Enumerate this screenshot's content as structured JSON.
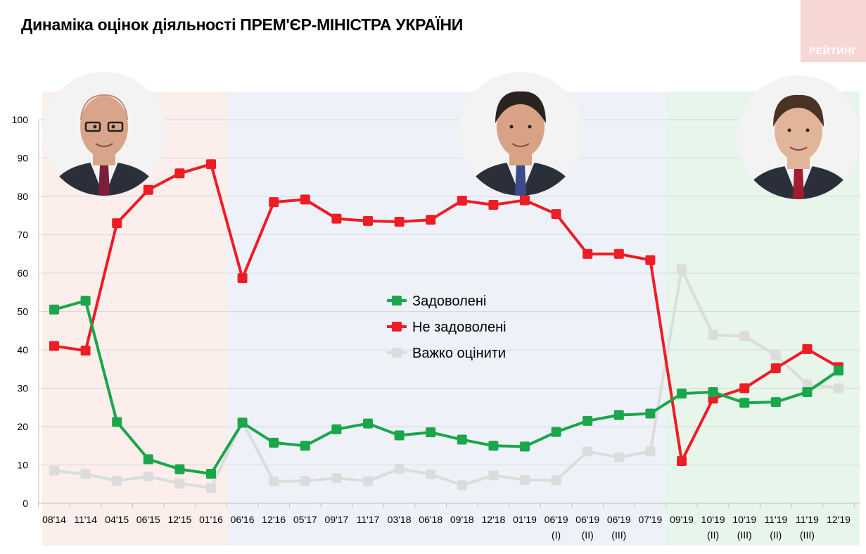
{
  "title": "Динаміка оцінок діяльності ПРЕМ'ЄР-МІНІСТРА УКРАЇНИ",
  "logo_text": "РЕЙТИНГ",
  "colors": {
    "satisfied": "#1aa64a",
    "unsatisfied": "#ee1c24",
    "hard": "#dcdcdc",
    "band1": "#fbeeeb",
    "band2": "#eef2f8",
    "band3": "#e7f5ea"
  },
  "portraits": [
    {
      "name": "yatsenyuk-portrait"
    },
    {
      "name": "groysman-portrait"
    },
    {
      "name": "honcharuk-portrait"
    }
  ],
  "chart_data": {
    "type": "line",
    "title": "Динаміка оцінок діяльності ПРЕМ'ЄР-МІНІСТРА УКРАЇНИ",
    "ylim": [
      0,
      100
    ],
    "yticks": [
      0,
      10,
      20,
      30,
      40,
      50,
      60,
      70,
      80,
      90,
      100
    ],
    "grid": true,
    "legend_position": "center",
    "categories": [
      {
        "label": "08'14",
        "sub": ""
      },
      {
        "label": "11'14",
        "sub": ""
      },
      {
        "label": "04'15",
        "sub": ""
      },
      {
        "label": "06'15",
        "sub": ""
      },
      {
        "label": "12'15",
        "sub": ""
      },
      {
        "label": "01'16",
        "sub": ""
      },
      {
        "label": "06'16",
        "sub": ""
      },
      {
        "label": "12'16",
        "sub": ""
      },
      {
        "label": "05'17",
        "sub": ""
      },
      {
        "label": "09'17",
        "sub": ""
      },
      {
        "label": "11'17",
        "sub": ""
      },
      {
        "label": "03'18",
        "sub": ""
      },
      {
        "label": "06'18",
        "sub": ""
      },
      {
        "label": "09'18",
        "sub": ""
      },
      {
        "label": "12'18",
        "sub": ""
      },
      {
        "label": "01'19",
        "sub": ""
      },
      {
        "label": "06'19",
        "sub": "(I)"
      },
      {
        "label": "06'19",
        "sub": "(II)"
      },
      {
        "label": "06'19",
        "sub": "(III)"
      },
      {
        "label": "07'19",
        "sub": ""
      },
      {
        "label": "09'19",
        "sub": ""
      },
      {
        "label": "10'19",
        "sub": "(II)"
      },
      {
        "label": "10'19",
        "sub": "(III)"
      },
      {
        "label": "11'19",
        "sub": "(II)"
      },
      {
        "label": "11'19",
        "sub": "(III)"
      },
      {
        "label": "12'19",
        "sub": ""
      }
    ],
    "bands": [
      {
        "from": 0,
        "to": 5,
        "color_key": "band1"
      },
      {
        "from": 6,
        "to": 19,
        "color_key": "band2"
      },
      {
        "from": 20,
        "to": 25,
        "color_key": "band3"
      }
    ],
    "series": [
      {
        "name": "Задоволені",
        "color_key": "satisfied",
        "values": [
          50.5,
          52.8,
          21.2,
          11.5,
          8.9,
          7.7,
          21.0,
          15.8,
          15.0,
          19.3,
          20.8,
          17.7,
          18.5,
          16.6,
          15.0,
          14.8,
          18.6,
          21.5,
          23.0,
          23.4,
          28.6,
          29.0,
          26.2,
          26.4,
          29.0,
          34.6
        ]
      },
      {
        "name": "Не задоволені",
        "color_key": "unsatisfied",
        "values": [
          41.0,
          39.8,
          73.0,
          81.7,
          86.0,
          88.4,
          58.7,
          78.5,
          79.2,
          74.2,
          73.6,
          73.4,
          73.9,
          78.9,
          77.8,
          79.0,
          75.4,
          65.0,
          65.0,
          63.4,
          11.0,
          27.3,
          30.0,
          35.2,
          40.2,
          35.5
        ]
      },
      {
        "name": "Важко оцінити",
        "color_key": "hard",
        "values": [
          8.5,
          7.6,
          5.9,
          7.0,
          5.2,
          4.0,
          21.3,
          5.7,
          5.8,
          6.6,
          5.8,
          9.0,
          7.6,
          4.7,
          7.3,
          6.1,
          6.0,
          13.5,
          12.0,
          13.5,
          61.0,
          43.9,
          43.6,
          38.6,
          31.0,
          30.0
        ]
      }
    ]
  }
}
